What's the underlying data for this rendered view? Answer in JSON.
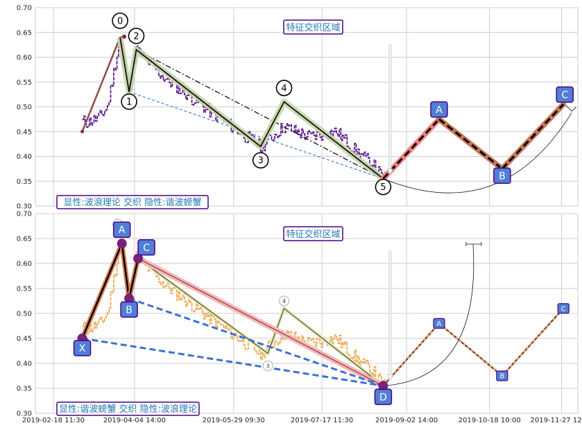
{
  "chart_data": [
    {
      "type": "line",
      "ylim": [
        0.3,
        0.7
      ],
      "yticks": [
        "0.30",
        "0.35",
        "0.40",
        "0.45",
        "0.50",
        "0.55",
        "0.60",
        "0.65",
        "0.70"
      ],
      "grid": true,
      "banner": "特征交织区域",
      "caption": "显性:波浪理论 交织 隐性:谐波螃蟹",
      "wave_points": [
        {
          "label": "0",
          "x": "2019-03-27",
          "y": 0.64
        },
        {
          "label": "1",
          "x": "2019-04-01",
          "y": 0.53
        },
        {
          "label": "2",
          "x": "2019-04-05",
          "y": 0.615
        },
        {
          "label": "3",
          "x": "2019-06-13",
          "y": 0.42
        },
        {
          "label": "4",
          "x": "2019-06-26",
          "y": 0.51
        },
        {
          "label": "5",
          "x": "2019-08-20",
          "y": 0.355
        }
      ],
      "projection_points": [
        {
          "label": "A",
          "x": "2019-09-20",
          "y": 0.475
        },
        {
          "label": "B",
          "x": "2019-10-25",
          "y": 0.375
        },
        {
          "label": "C",
          "x": "2019-11-28",
          "y": 0.505
        }
      ],
      "series_color": "#4b0082"
    },
    {
      "type": "line",
      "ylim": [
        0.3,
        0.7
      ],
      "yticks": [
        "0.30",
        "0.35",
        "0.40",
        "0.45",
        "0.50",
        "0.55",
        "0.60",
        "0.65",
        "0.70"
      ],
      "grid": true,
      "banner": "特征交织区域",
      "caption": "显性:谐波螃蟹 交织 隐性:波浪理论",
      "harmonic_points": [
        {
          "label": "X",
          "x": "2019-03-06",
          "y": 0.45
        },
        {
          "label": "A",
          "x": "2019-03-28",
          "y": 0.64
        },
        {
          "label": "B",
          "x": "2019-04-01",
          "y": 0.53
        },
        {
          "label": "C",
          "x": "2019-04-06",
          "y": 0.61
        },
        {
          "label": "D",
          "x": "2019-08-20",
          "y": 0.355
        }
      ],
      "projection_points": [
        {
          "label": "A",
          "x": "2019-09-20",
          "y": 0.48
        },
        {
          "label": "B",
          "x": "2019-10-25",
          "y": 0.375
        },
        {
          "label": "C",
          "x": "2019-11-28",
          "y": 0.51
        }
      ],
      "wave_marks": [
        {
          "label": "4",
          "x": "2019-06-26",
          "y": 0.525
        },
        {
          "label": "3",
          "x": "2019-06-17",
          "y": 0.395
        }
      ],
      "series_color": "#e8a33d"
    }
  ],
  "x_axis": {
    "tick_labels": [
      "2019-02-18 11:30",
      "2019-04-04 14:00",
      "2019-05-29 09:30",
      "2019-07-17 11:30",
      "2019-09-02 14:00",
      "2019-10-18 10:00",
      "2019-11-27 12:00"
    ]
  }
}
